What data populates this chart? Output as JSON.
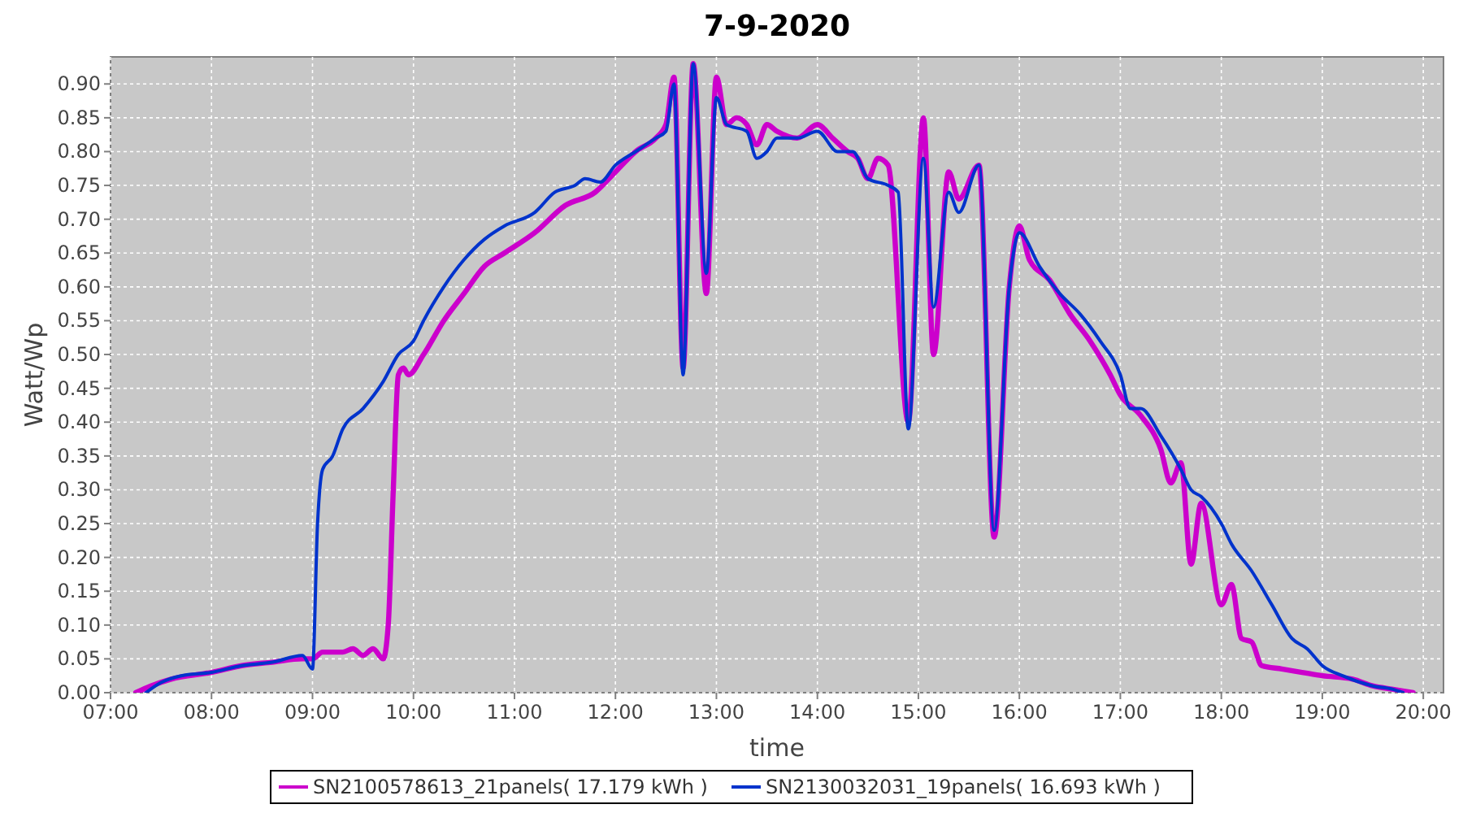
{
  "chart_data": {
    "type": "line",
    "title": "7-9-2020",
    "xlabel": "time",
    "ylabel": "Watt/Wp",
    "grid": true,
    "legend": "bottom",
    "marker": "none",
    "line_style": "solid",
    "xlim": [
      7,
      20.2
    ],
    "ylim": [
      0,
      0.94
    ],
    "xticks": [
      {
        "value": 7,
        "label": "07:00"
      },
      {
        "value": 8,
        "label": "08:00"
      },
      {
        "value": 9,
        "label": "09:00"
      },
      {
        "value": 10,
        "label": "10:00"
      },
      {
        "value": 11,
        "label": "11:00"
      },
      {
        "value": 12,
        "label": "12:00"
      },
      {
        "value": 13,
        "label": "13:00"
      },
      {
        "value": 14,
        "label": "14:00"
      },
      {
        "value": 15,
        "label": "15:00"
      },
      {
        "value": 16,
        "label": "16:00"
      },
      {
        "value": 17,
        "label": "17:00"
      },
      {
        "value": 18,
        "label": "18:00"
      },
      {
        "value": 19,
        "label": "19:00"
      },
      {
        "value": 20,
        "label": "20:00"
      }
    ],
    "yticks": [
      {
        "value": 0,
        "label": "0.00"
      },
      {
        "value": 0.05,
        "label": "0.05"
      },
      {
        "value": 0.1,
        "label": "0.10"
      },
      {
        "value": 0.15,
        "label": "0.15"
      },
      {
        "value": 0.2,
        "label": "0.20"
      },
      {
        "value": 0.25,
        "label": "0.25"
      },
      {
        "value": 0.3,
        "label": "0.30"
      },
      {
        "value": 0.35,
        "label": "0.35"
      },
      {
        "value": 0.4,
        "label": "0.40"
      },
      {
        "value": 0.45,
        "label": "0.45"
      },
      {
        "value": 0.5,
        "label": "0.50"
      },
      {
        "value": 0.55,
        "label": "0.55"
      },
      {
        "value": 0.6,
        "label": "0.60"
      },
      {
        "value": 0.65,
        "label": "0.65"
      },
      {
        "value": 0.7,
        "label": "0.70"
      },
      {
        "value": 0.75,
        "label": "0.75"
      },
      {
        "value": 0.8,
        "label": "0.80"
      },
      {
        "value": 0.85,
        "label": "0.85"
      },
      {
        "value": 0.9,
        "label": "0.90"
      }
    ],
    "series": [
      {
        "name": "SN2100578613_21panels( 17.179 kWh )",
        "color": "#cc00cc",
        "x": [
          7.25,
          7.4,
          7.6,
          8.0,
          8.3,
          8.6,
          8.9,
          9.0,
          9.1,
          9.3,
          9.4,
          9.5,
          9.6,
          9.7,
          9.75,
          9.8,
          9.85,
          9.9,
          9.95,
          10.1,
          10.3,
          10.5,
          10.7,
          10.9,
          11.2,
          11.5,
          11.8,
          12.0,
          12.2,
          12.4,
          12.5,
          12.58,
          12.67,
          12.77,
          12.9,
          13.0,
          13.1,
          13.2,
          13.3,
          13.4,
          13.5,
          13.6,
          13.8,
          14.0,
          14.15,
          14.3,
          14.4,
          14.5,
          14.6,
          14.7,
          14.9,
          15.05,
          15.15,
          15.3,
          15.4,
          15.6,
          15.75,
          15.9,
          16.0,
          16.1,
          16.3,
          16.5,
          16.7,
          16.9,
          17.0,
          17.2,
          17.4,
          17.5,
          17.6,
          17.7,
          17.8,
          18.0,
          18.1,
          18.2,
          18.3,
          18.4,
          18.6,
          18.8,
          19.0,
          19.3,
          19.5,
          19.7,
          19.9
        ],
        "values": [
          0,
          0.01,
          0.02,
          0.03,
          0.04,
          0.045,
          0.05,
          0.05,
          0.06,
          0.06,
          0.065,
          0.055,
          0.065,
          0.05,
          0.1,
          0.3,
          0.47,
          0.48,
          0.47,
          0.5,
          0.55,
          0.59,
          0.63,
          0.65,
          0.68,
          0.72,
          0.74,
          0.77,
          0.8,
          0.82,
          0.84,
          0.91,
          0.48,
          0.93,
          0.59,
          0.91,
          0.84,
          0.85,
          0.84,
          0.81,
          0.84,
          0.83,
          0.82,
          0.84,
          0.82,
          0.8,
          0.79,
          0.76,
          0.79,
          0.78,
          0.4,
          0.85,
          0.5,
          0.77,
          0.73,
          0.78,
          0.23,
          0.6,
          0.69,
          0.64,
          0.61,
          0.56,
          0.52,
          0.47,
          0.44,
          0.41,
          0.36,
          0.31,
          0.34,
          0.19,
          0.28,
          0.13,
          0.16,
          0.08,
          0.075,
          0.04,
          0.035,
          0.03,
          0.025,
          0.02,
          0.01,
          0.005,
          0
        ]
      },
      {
        "name": "SN2130032031_19panels( 16.693 kWh )",
        "color": "#0033cc",
        "x": [
          7.35,
          7.5,
          7.7,
          8.0,
          8.3,
          8.6,
          8.9,
          9.0,
          9.05,
          9.1,
          9.2,
          9.3,
          9.5,
          9.7,
          9.85,
          10.0,
          10.1,
          10.3,
          10.5,
          10.7,
          10.9,
          11.2,
          11.4,
          11.6,
          11.7,
          11.85,
          12.0,
          12.2,
          12.4,
          12.5,
          12.58,
          12.67,
          12.77,
          12.9,
          13.0,
          13.1,
          13.3,
          13.4,
          13.5,
          13.6,
          13.8,
          14.0,
          14.2,
          14.35,
          14.5,
          14.7,
          14.8,
          14.9,
          15.05,
          15.15,
          15.3,
          15.4,
          15.6,
          15.75,
          15.9,
          16.0,
          16.2,
          16.4,
          16.6,
          16.8,
          17.0,
          17.1,
          17.2,
          17.4,
          17.6,
          17.7,
          17.8,
          18.0,
          18.1,
          18.3,
          18.5,
          18.7,
          18.85,
          19.0,
          19.2,
          19.5,
          19.7,
          19.8
        ],
        "values": [
          0,
          0.015,
          0.025,
          0.03,
          0.04,
          0.045,
          0.055,
          0.035,
          0.25,
          0.33,
          0.35,
          0.39,
          0.42,
          0.46,
          0.5,
          0.52,
          0.55,
          0.6,
          0.64,
          0.67,
          0.69,
          0.71,
          0.74,
          0.75,
          0.76,
          0.755,
          0.78,
          0.8,
          0.82,
          0.83,
          0.9,
          0.47,
          0.93,
          0.62,
          0.88,
          0.84,
          0.83,
          0.79,
          0.8,
          0.82,
          0.82,
          0.83,
          0.8,
          0.8,
          0.76,
          0.75,
          0.74,
          0.39,
          0.79,
          0.57,
          0.74,
          0.71,
          0.78,
          0.24,
          0.6,
          0.68,
          0.63,
          0.59,
          0.56,
          0.52,
          0.47,
          0.42,
          0.42,
          0.38,
          0.33,
          0.3,
          0.29,
          0.25,
          0.22,
          0.18,
          0.13,
          0.08,
          0.065,
          0.04,
          0.025,
          0.01,
          0.005,
          0
        ]
      }
    ]
  }
}
